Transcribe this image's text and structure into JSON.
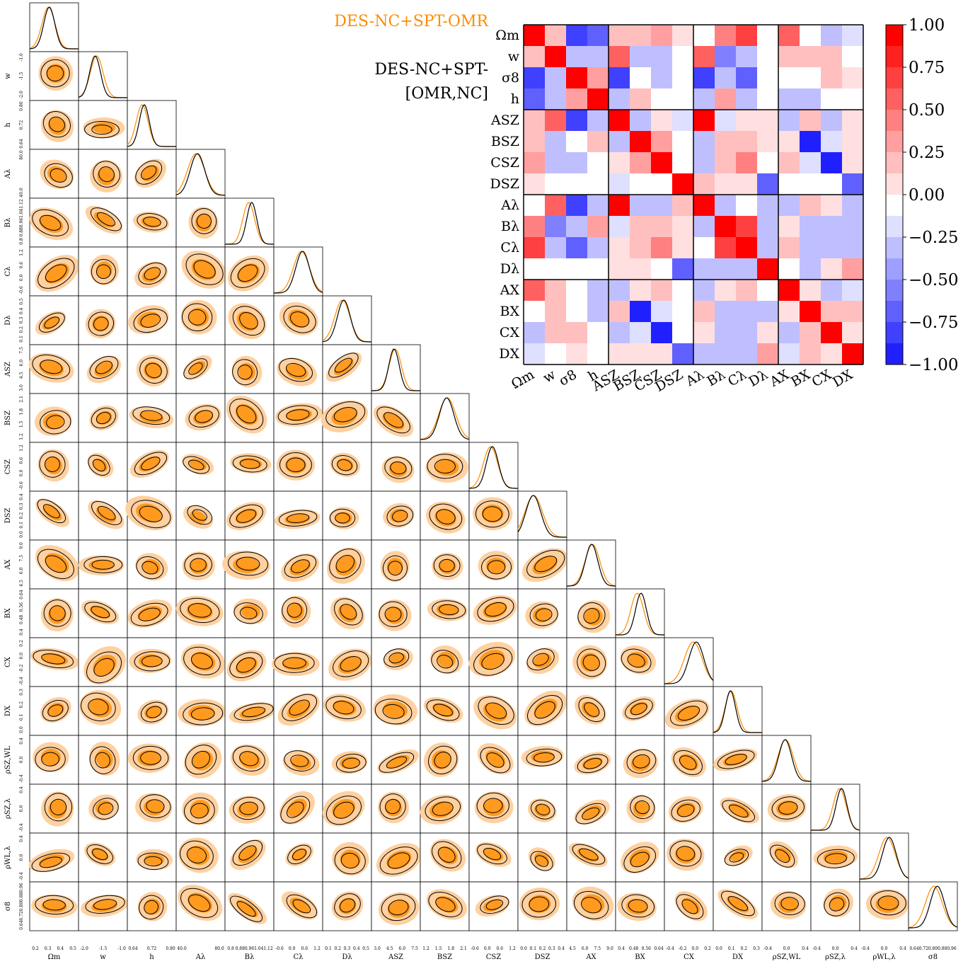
{
  "legend": {
    "entries": [
      {
        "label": "DES-NC+SPT-OMR",
        "color": "#ff8c00"
      },
      {
        "label": "DES-NC+SPT-[OMR,NC]",
        "color": "#000000"
      }
    ]
  },
  "colors": {
    "fill_outer": "#ffd0a0",
    "fill_inner": "#ff9a1f",
    "contour": "#000000",
    "orange_line": "#ff8c00"
  },
  "chart_data": [
    {
      "type": "corner",
      "parameters": [
        "Ωm",
        "w",
        "h",
        "Aλ",
        "Bλ",
        "Cλ",
        "Dλ",
        "ASZ",
        "BSZ",
        "CSZ",
        "DSZ",
        "AX",
        "BX",
        "CX",
        "DX",
        "ρSZ,WL",
        "ρSZ,λ",
        "ρWL,λ",
        "σ8"
      ],
      "tick_labels": [
        [
          "0.2",
          "0.3",
          "0.4",
          "0.5"
        ],
        [
          "-2.0",
          "-1.5",
          "-1.0"
        ],
        [
          "0.64",
          "0.72",
          "0.80"
        ],
        [
          "40.0",
          "80.0"
        ],
        [
          "0.8",
          "0.88",
          "0.96",
          "1.04",
          "1.12"
        ],
        [
          "-0.6",
          "0.0",
          "0.6",
          "1.2"
        ],
        [
          "0.1",
          "0.2",
          "0.3",
          "0.4",
          "0.5"
        ],
        [
          "3.0",
          "4.5",
          "6.0",
          "7.5"
        ],
        [
          "1.2",
          "1.5",
          "1.8",
          "2.1"
        ],
        [
          "-0.6",
          "0.0",
          "0.6",
          "1.2"
        ],
        [
          "0.0",
          "0.1",
          "0.2",
          "0.3",
          "0.4"
        ],
        [
          "4.5",
          "6.0",
          "7.5",
          "9.0"
        ],
        [
          "0.4",
          "0.48",
          "0.56",
          "0.64"
        ],
        [
          "-0.4",
          "-0.2",
          "0.0",
          "0.2"
        ],
        [
          "0.0",
          "0.1",
          "0.2",
          "0.3"
        ],
        [
          "-0.4",
          "0.0",
          "0.4"
        ],
        [
          "-0.4",
          "0.0",
          "0.4"
        ],
        [
          "-0.4",
          "0.0",
          "0.4"
        ],
        [
          "0.64",
          "0.72",
          "0.80",
          "0.88",
          "0.96"
        ]
      ]
    },
    {
      "type": "heatmap",
      "labels": [
        "Ωm",
        "w",
        "σ8",
        "h",
        "ASZ",
        "BSZ",
        "CSZ",
        "DSZ",
        "Aλ",
        "Bλ",
        "Cλ",
        "Dλ",
        "AX",
        "BX",
        "CX",
        "DX"
      ],
      "colorbar_ticks": [
        "1.00",
        "0.75",
        "0.50",
        "0.25",
        "0.00",
        "−0.25",
        "−0.50",
        "−0.75",
        "−1.00"
      ],
      "zlim": [
        -1,
        1
      ],
      "matrix": [
        [
          1.0,
          0.2,
          -0.8,
          -0.6,
          0.2,
          0.2,
          0.4,
          0.1,
          0.05,
          0.5,
          0.8,
          -0.05,
          0.6,
          -0.05,
          -0.2,
          -0.1
        ],
        [
          0.2,
          1.0,
          -0.3,
          -0.3,
          0.6,
          -0.2,
          -0.2,
          0.05,
          0.6,
          -0.5,
          -0.3,
          0.05,
          0.3,
          0.2,
          0.2,
          -0.05
        ],
        [
          -0.8,
          -0.3,
          1.0,
          0.4,
          -0.8,
          0.05,
          -0.2,
          -0.05,
          -0.8,
          -0.2,
          -0.6,
          0.05,
          -0.05,
          -0.05,
          0.2,
          0.1
        ],
        [
          -0.6,
          -0.3,
          0.4,
          1.0,
          -0.3,
          0.2,
          -0.05,
          -0.05,
          -0.3,
          0.4,
          -0.2,
          -0.05,
          -0.2,
          -0.2,
          0.05,
          -0.05
        ],
        [
          0.2,
          0.6,
          -0.8,
          -0.3,
          1.0,
          -0.2,
          0.1,
          -0.1,
          1.0,
          -0.1,
          0.1,
          0.1,
          -0.3,
          0.2,
          -0.2,
          0.1
        ],
        [
          0.2,
          -0.2,
          0.05,
          0.2,
          -0.2,
          1.0,
          0.4,
          -0.05,
          -0.2,
          0.3,
          0.2,
          0.1,
          0.1,
          -0.9,
          -0.1,
          0.1
        ],
        [
          0.4,
          -0.2,
          -0.2,
          -0.05,
          0.1,
          0.4,
          1.0,
          -0.05,
          -0.2,
          0.3,
          0.5,
          0.05,
          0.3,
          -0.1,
          -0.9,
          0.1
        ],
        [
          0.1,
          0.05,
          -0.05,
          -0.05,
          -0.1,
          -0.05,
          -0.05,
          1.0,
          0.2,
          0.1,
          0.1,
          -0.6,
          -0.05,
          -0.05,
          -0.05,
          -0.6
        ],
        [
          0.05,
          0.6,
          -0.8,
          -0.3,
          1.0,
          -0.2,
          -0.2,
          0.2,
          1.0,
          -0.2,
          -0.05,
          -0.3,
          -0.3,
          0.2,
          0.1,
          -0.2
        ],
        [
          0.5,
          -0.5,
          -0.2,
          0.4,
          -0.1,
          0.3,
          0.3,
          0.1,
          -0.2,
          1.0,
          0.7,
          -0.2,
          0.1,
          -0.3,
          -0.2,
          -0.2
        ],
        [
          0.8,
          -0.3,
          -0.6,
          -0.2,
          0.1,
          0.2,
          0.5,
          0.1,
          -0.05,
          0.7,
          1.0,
          -0.2,
          0.3,
          -0.2,
          -0.3,
          -0.2
        ],
        [
          -0.05,
          0.05,
          0.05,
          -0.05,
          0.1,
          0.1,
          0.05,
          -0.6,
          -0.3,
          -0.2,
          -0.2,
          1.0,
          -0.05,
          -0.2,
          0.1,
          0.4
        ],
        [
          0.6,
          0.3,
          -0.05,
          -0.2,
          -0.3,
          0.1,
          0.3,
          -0.05,
          -0.3,
          0.1,
          0.3,
          -0.05,
          1.0,
          0.1,
          -0.3,
          -0.1
        ],
        [
          -0.05,
          0.2,
          -0.05,
          -0.2,
          0.2,
          -0.9,
          -0.1,
          -0.05,
          0.2,
          -0.3,
          -0.2,
          -0.2,
          0.1,
          1.0,
          0.2,
          0.2
        ],
        [
          -0.2,
          0.2,
          0.2,
          0.05,
          -0.2,
          -0.1,
          -0.9,
          -0.05,
          0.1,
          -0.2,
          -0.3,
          0.1,
          -0.3,
          0.2,
          1.0,
          0.1
        ],
        [
          -0.1,
          -0.05,
          0.1,
          -0.05,
          0.1,
          0.1,
          0.1,
          -0.6,
          -0.2,
          -0.2,
          -0.2,
          0.4,
          -0.1,
          0.2,
          0.1,
          1.0
        ]
      ]
    }
  ]
}
